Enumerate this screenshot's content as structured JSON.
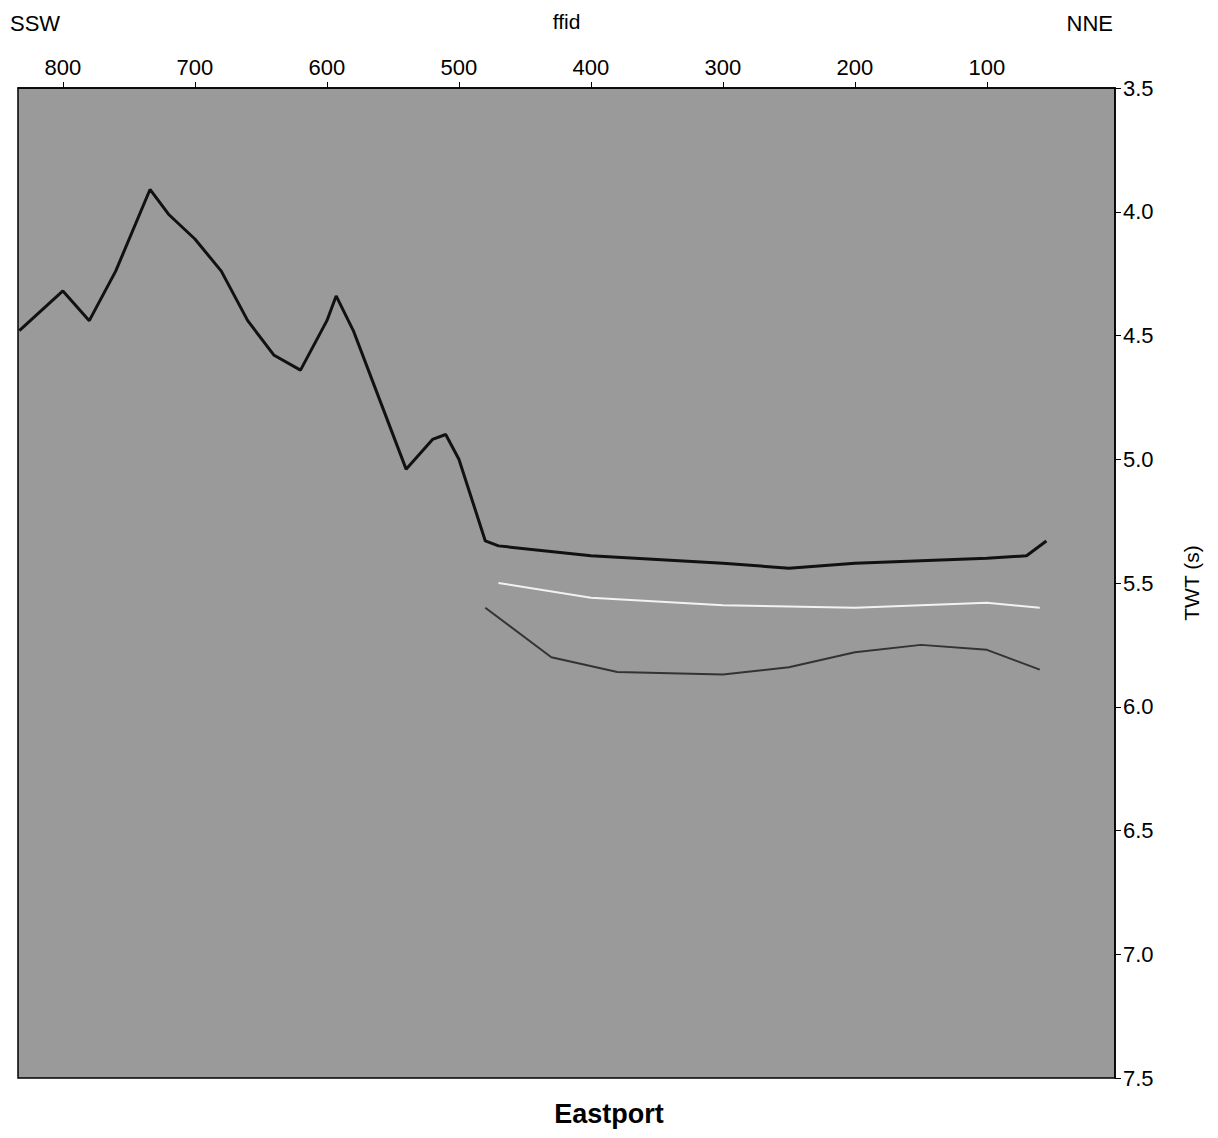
{
  "chart_data": {
    "type": "line",
    "title": "Eastport",
    "x_label": "ffid",
    "y_label": "TWT (s)",
    "annotations": [
      "SSW",
      "NNE"
    ],
    "xlim": [
      834,
      3
    ],
    "xticks": [
      800,
      700,
      600,
      500,
      400,
      300,
      200,
      100
    ],
    "ylim": [
      3.5,
      7.5
    ],
    "yticks": [
      3.5,
      {
        "value": 4,
        "label": "4.0"
      },
      4.5,
      {
        "value": 5,
        "label": "5.0"
      },
      5.5,
      {
        "value": 6,
        "label": "6.0"
      },
      6.5,
      {
        "value": 7,
        "label": "7.0"
      },
      7.5
    ],
    "grid": false,
    "series": [
      {
        "color": "#111111",
        "x": [
          833,
          800,
          780,
          760,
          734,
          720,
          700,
          680,
          660,
          640,
          620,
          600,
          593,
          580,
          560,
          540,
          520,
          510,
          500,
          480,
          470,
          400,
          300,
          250,
          200,
          150,
          100,
          70,
          55
        ],
        "values": [
          4.48,
          4.32,
          4.44,
          4.24,
          3.91,
          4.01,
          4.11,
          4.24,
          4.44,
          4.58,
          4.64,
          4.44,
          4.34,
          4.48,
          4.76,
          5.04,
          4.92,
          4.9,
          5.0,
          5.33,
          5.35,
          5.39,
          5.42,
          5.44,
          5.42,
          5.41,
          5.4,
          5.39,
          5.33
        ]
      },
      {
        "color": "#f2f2f2",
        "x": [
          470,
          400,
          300,
          200,
          100,
          60
        ],
        "values": [
          5.5,
          5.56,
          5.59,
          5.6,
          5.58,
          5.6
        ]
      },
      {
        "color": "#333333",
        "x": [
          480,
          430,
          380,
          300,
          250,
          200,
          150,
          100,
          60
        ],
        "values": [
          5.6,
          5.8,
          5.86,
          5.87,
          5.84,
          5.78,
          5.75,
          5.77,
          5.85
        ]
      }
    ]
  }
}
